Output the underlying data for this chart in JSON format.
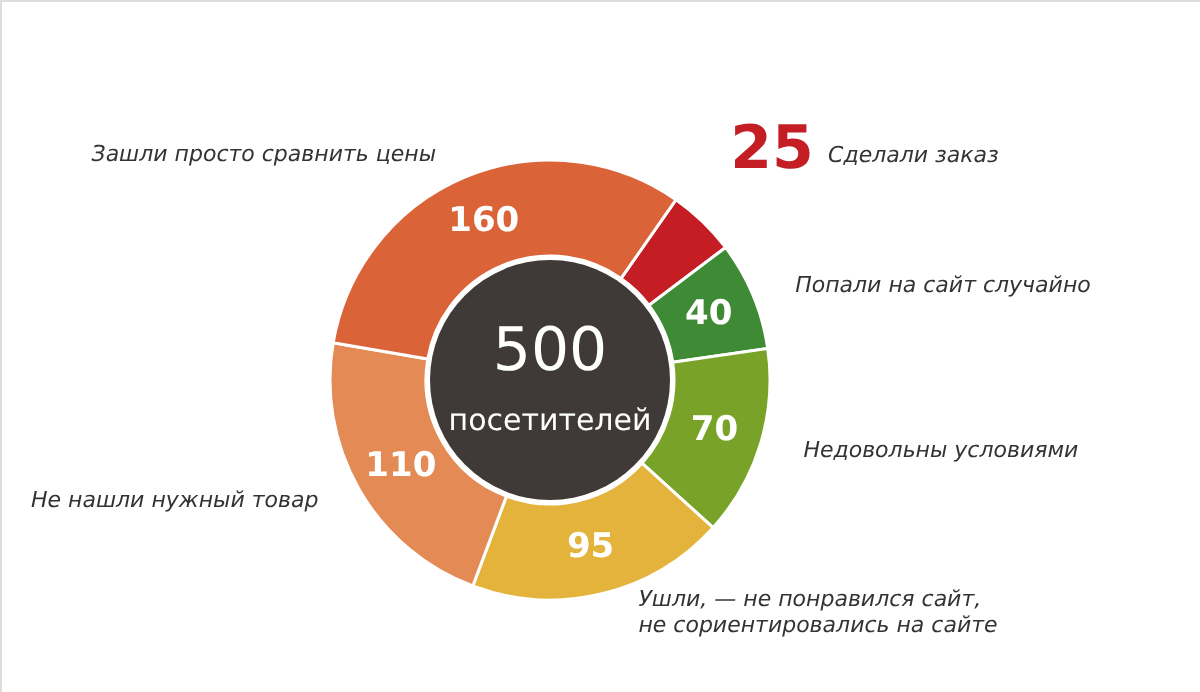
{
  "chart_data": {
    "type": "donut",
    "categories": [
      "Сделали заказ",
      "Попали на сайт случайно",
      "Недовольны условиями",
      "Ушли, — не понравился сайт,\nне сориентировались на сайте",
      "Не нашли нужный товар",
      "Зашли просто сравнить цены"
    ],
    "values": [
      25,
      40,
      70,
      95,
      110,
      160
    ],
    "colors": [
      "#c41e24",
      "#3f8a34",
      "#78a328",
      "#e4b33b",
      "#e38a55",
      "#da6338"
    ],
    "data_labels": true,
    "annotations": [
      "500",
      "посетителей"
    ]
  }
}
